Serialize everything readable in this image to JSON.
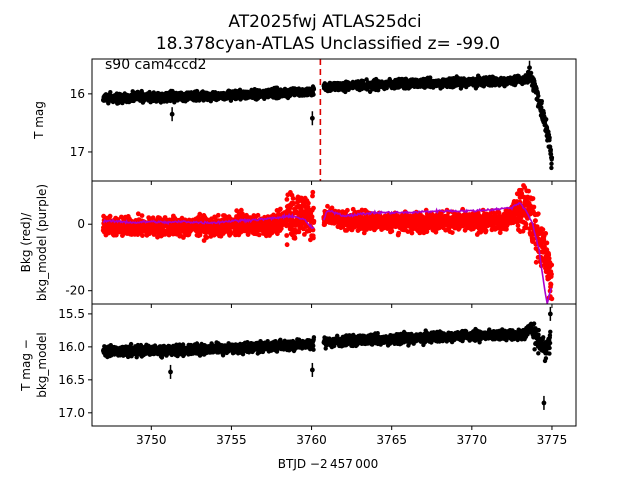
{
  "figure": {
    "title_line1": "AT2025fwj  ATLAS25dci",
    "title_line2": "18.378cyan-ATLAS Unclassified z= -99.0",
    "annotation": "s90 cam4ccd2",
    "xlabel": "BTJD −2 457 000"
  },
  "chart_data": [
    {
      "type": "scatter",
      "panel": "top",
      "ylabel": "T mag",
      "y_inverted": true,
      "xlim": [
        3746.3,
        3776.5
      ],
      "ylim": [
        15.4,
        17.5
      ],
      "yticks": [
        16,
        17
      ],
      "marker_color": "#000000",
      "vertical_line": {
        "x": 3760.55,
        "style": "dashed",
        "color": "#dd0000"
      },
      "series": [
        {
          "points": [
            [
              3747.0,
              16.07
            ],
            [
              3748.0,
              16.08
            ],
            [
              3749.0,
              16.05
            ],
            [
              3750.0,
              16.06
            ],
            [
              3751.0,
              16.05
            ],
            [
              3752.0,
              16.04
            ],
            [
              3753.0,
              16.03
            ],
            [
              3754.0,
              16.03
            ],
            [
              3755.0,
              16.02
            ],
            [
              3756.0,
              16.02
            ],
            [
              3757.0,
              16.0
            ],
            [
              3758.0,
              15.99
            ],
            [
              3759.0,
              15.98
            ],
            [
              3760.0,
              15.96
            ],
            [
              3760.8,
              15.88
            ],
            [
              3761.5,
              15.87
            ],
            [
              3763.0,
              15.86
            ],
            [
              3765.0,
              15.83
            ],
            [
              3767.0,
              15.82
            ],
            [
              3769.0,
              15.8
            ],
            [
              3771.0,
              15.79
            ],
            [
              3772.5,
              15.78
            ],
            [
              3773.3,
              15.75
            ],
            [
              3773.7,
              15.7
            ],
            [
              3774.0,
              15.95
            ],
            [
              3774.3,
              16.25
            ],
            [
              3774.6,
              16.5
            ],
            [
              3774.9,
              16.95
            ],
            [
              3775.0,
              17.25
            ]
          ],
          "outliers": [
            [
              3751.3,
              16.35
            ],
            [
              3760.05,
              16.42
            ],
            [
              3773.6,
              15.55
            ]
          ]
        }
      ]
    },
    {
      "type": "scatter",
      "panel": "middle",
      "ylabel": "Bkg (red)/\nbkg_model (purple)",
      "xlim": [
        3746.3,
        3776.5
      ],
      "ylim": [
        -24,
        13
      ],
      "yticks": [
        -20,
        0
      ],
      "series": [
        {
          "name": "Bkg",
          "color": "#ff0000",
          "points": [
            [
              3747.0,
              0.0
            ],
            [
              3748.0,
              -1.0
            ],
            [
              3749.0,
              -0.5
            ],
            [
              3750.0,
              -1.0
            ],
            [
              3751.0,
              -0.5
            ],
            [
              3752.0,
              -1.0
            ],
            [
              3753.0,
              -0.5
            ],
            [
              3754.0,
              -1.0
            ],
            [
              3755.0,
              0.0
            ],
            [
              3756.0,
              0.0
            ],
            [
              3757.0,
              -0.5
            ],
            [
              3758.0,
              0.5
            ],
            [
              3758.6,
              4.0
            ],
            [
              3759.0,
              2.0
            ],
            [
              3759.5,
              4.0
            ],
            [
              3760.0,
              2.0
            ],
            [
              3760.5,
              -2.0
            ],
            [
              3761.0,
              3.0
            ],
            [
              3762.0,
              1.0
            ],
            [
              3764.0,
              1.0
            ],
            [
              3766.0,
              0.5
            ],
            [
              3768.0,
              1.0
            ],
            [
              3770.0,
              0.5
            ],
            [
              3772.0,
              1.0
            ],
            [
              3773.0,
              5.0
            ],
            [
              3773.5,
              4.0
            ],
            [
              3774.0,
              -2.0
            ],
            [
              3774.5,
              -8.0
            ],
            [
              3775.0,
              -18.0
            ]
          ]
        },
        {
          "name": "bkg_model",
          "color": "#aa00cc",
          "points": [
            [
              3747.0,
              1.0
            ],
            [
              3748.0,
              0.8
            ],
            [
              3749.0,
              0.5
            ],
            [
              3750.0,
              0.8
            ],
            [
              3751.0,
              0.5
            ],
            [
              3752.0,
              0.8
            ],
            [
              3753.0,
              0.5
            ],
            [
              3754.0,
              0.5
            ],
            [
              3755.0,
              1.0
            ],
            [
              3756.0,
              1.2
            ],
            [
              3757.0,
              1.5
            ],
            [
              3758.0,
              2.0
            ],
            [
              3758.8,
              2.5
            ],
            [
              3759.5,
              1.5
            ],
            [
              3760.0,
              -1.0
            ],
            [
              3760.5,
              -1.5
            ],
            [
              3761.0,
              4.0
            ],
            [
              3761.5,
              3.5
            ],
            [
              3762.0,
              2.5
            ],
            [
              3764.0,
              3.5
            ],
            [
              3766.0,
              3.5
            ],
            [
              3768.0,
              4.0
            ],
            [
              3770.0,
              4.0
            ],
            [
              3771.5,
              4.5
            ],
            [
              3772.5,
              5.0
            ],
            [
              3773.0,
              6.5
            ],
            [
              3773.4,
              4.0
            ],
            [
              3773.8,
              0.0
            ],
            [
              3774.2,
              -8.0
            ],
            [
              3774.5,
              -18.0
            ],
            [
              3774.7,
              -24.0
            ],
            [
              3775.0,
              -18.0
            ]
          ]
        }
      ]
    },
    {
      "type": "scatter",
      "panel": "bottom",
      "ylabel": "T mag −\nbkg_model",
      "y_inverted": true,
      "xlim": [
        3746.3,
        3776.5
      ],
      "ylim": [
        15.35,
        17.2
      ],
      "yticks": [
        15.5,
        16.0,
        16.5,
        17.0
      ],
      "ytick_labels": [
        "15.5",
        "16.0",
        "16.5",
        "17.0"
      ],
      "xticks": [
        3750,
        3755,
        3760,
        3765,
        3770,
        3775
      ],
      "marker_color": "#000000",
      "series": [
        {
          "points": [
            [
              3747.0,
              16.07
            ],
            [
              3748.0,
              16.06
            ],
            [
              3749.0,
              16.06
            ],
            [
              3750.0,
              16.05
            ],
            [
              3751.0,
              16.06
            ],
            [
              3752.0,
              16.05
            ],
            [
              3753.0,
              16.04
            ],
            [
              3754.0,
              16.03
            ],
            [
              3755.0,
              16.03
            ],
            [
              3756.0,
              16.02
            ],
            [
              3757.0,
              16.0
            ],
            [
              3758.0,
              15.99
            ],
            [
              3759.0,
              15.98
            ],
            [
              3760.0,
              15.96
            ],
            [
              3760.8,
              15.93
            ],
            [
              3761.5,
              15.92
            ],
            [
              3763.0,
              15.9
            ],
            [
              3765.0,
              15.88
            ],
            [
              3767.0,
              15.86
            ],
            [
              3769.0,
              15.84
            ],
            [
              3771.0,
              15.82
            ],
            [
              3772.5,
              15.82
            ],
            [
              3773.3,
              15.8
            ],
            [
              3773.7,
              15.72
            ],
            [
              3774.0,
              15.85
            ],
            [
              3774.3,
              15.95
            ],
            [
              3774.6,
              16.05
            ],
            [
              3774.9,
              15.9
            ]
          ],
          "outliers": [
            [
              3751.2,
              16.38
            ],
            [
              3760.05,
              16.35
            ],
            [
              3774.5,
              16.85
            ],
            [
              3774.9,
              15.5
            ]
          ]
        }
      ]
    }
  ]
}
